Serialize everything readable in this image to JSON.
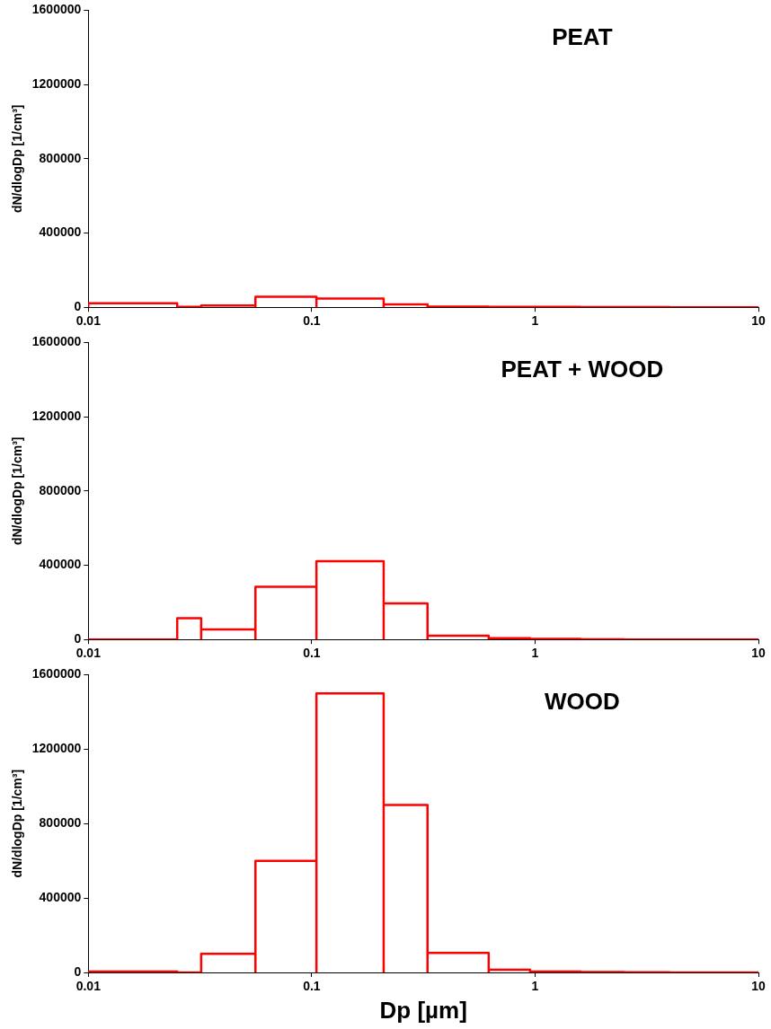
{
  "chart_data": [
    {
      "type": "histogram",
      "title": "PEAT",
      "ylabel": "dN/dlogDp [1/cm³]",
      "color": "#ff0000",
      "log": "x",
      "grid": false,
      "xlim": [
        0.01,
        10
      ],
      "xticks": [
        0.01,
        0.1,
        1,
        10
      ],
      "ylim": [
        0,
        1600000
      ],
      "yticks": [
        0,
        400000,
        800000,
        1200000,
        1600000
      ],
      "bins": [
        0.01,
        0.025,
        0.032,
        0.056,
        0.105,
        0.21,
        0.33,
        0.62,
        0.95,
        1.6,
        2.5,
        4,
        10
      ],
      "values": [
        22000,
        2000,
        10000,
        57000,
        47000,
        15000,
        3000,
        2000,
        2000,
        1000,
        1000,
        0
      ]
    },
    {
      "type": "histogram",
      "title": "PEAT + WOOD",
      "ylabel": "dN/dlogDp [1/cm³]",
      "color": "#ff0000",
      "log": "x",
      "grid": false,
      "xlim": [
        0.01,
        10
      ],
      "xticks": [
        0.01,
        0.1,
        1,
        10
      ],
      "ylim": [
        0,
        1600000
      ],
      "yticks": [
        0,
        400000,
        800000,
        1200000,
        1600000
      ],
      "bins": [
        0.01,
        0.025,
        0.032,
        0.056,
        0.105,
        0.21,
        0.33,
        0.62,
        0.95,
        1.6,
        2.5,
        4,
        10
      ],
      "values": [
        0,
        115000,
        54000,
        284000,
        422000,
        195000,
        20000,
        7000,
        3000,
        1000,
        0,
        0
      ]
    },
    {
      "type": "histogram",
      "title": "WOOD",
      "xlabel": "Dp [µm]",
      "ylabel": "dN/dlogDp [1/cm³]",
      "color": "#ff0000",
      "log": "x",
      "grid": false,
      "xlim": [
        0.01,
        10
      ],
      "xticks": [
        0.01,
        0.1,
        1,
        10
      ],
      "ylim": [
        0,
        1600000
      ],
      "yticks": [
        0,
        400000,
        800000,
        1200000,
        1600000
      ],
      "bins": [
        0.01,
        0.025,
        0.032,
        0.056,
        0.105,
        0.21,
        0.33,
        0.62,
        0.95,
        1.6,
        2.5,
        4,
        10
      ],
      "values": [
        5000,
        0,
        100000,
        600000,
        1500000,
        900000,
        105000,
        15000,
        5000,
        2000,
        1000,
        0
      ]
    }
  ]
}
